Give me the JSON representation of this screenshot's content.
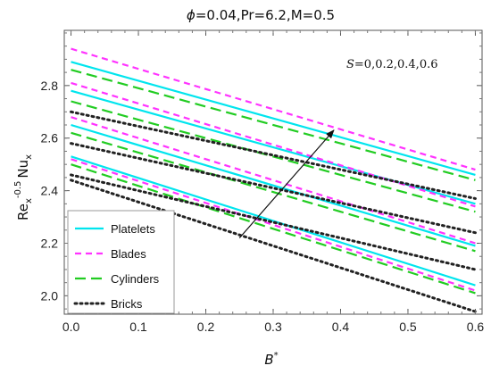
{
  "chart_data": {
    "type": "line",
    "title": "ϕ=0.04,Pr=6.2,M=0.5",
    "title_parts": {
      "phi": "ϕ",
      "rest": "=0.04,Pr=6.2,M=0.5"
    },
    "xlabel": "B*",
    "xlabel_parts": {
      "base": "B",
      "sup": "*"
    },
    "ylabel": "Re_x^-0.5 Nu_x",
    "ylabel_parts": {
      "re": "Re",
      "re_sub": "x",
      "re_sup": "-0.5",
      "nu": "Nu",
      "nu_sub": "x"
    },
    "xlim": [
      -0.01,
      0.61
    ],
    "ylim": [
      1.93,
      3.01
    ],
    "x_ticks": [
      0.0,
      0.1,
      0.2,
      0.3,
      0.4,
      0.5,
      0.6
    ],
    "x_tick_labels": [
      "0.0",
      "0.1",
      "0.2",
      "0.3",
      "0.4",
      "0.5",
      "0.6"
    ],
    "y_ticks": [
      2.0,
      2.2,
      2.4,
      2.6,
      2.8
    ],
    "y_tick_labels": [
      "2.0",
      "2.2",
      "2.4",
      "2.6",
      "2.8"
    ],
    "grid": false,
    "legend_position": "bottom-left",
    "annotation": "S=0,0.2,0.4,0.6",
    "annotation_parts": {
      "var": "S",
      "rest": "=0,0.2,0.4,0.6"
    },
    "arrow": {
      "from": [
        0.25,
        2.22
      ],
      "to": [
        0.39,
        2.63
      ]
    },
    "x": [
      0.0,
      0.6
    ],
    "series": [
      {
        "name": "Platelets",
        "color": "#00E5EE",
        "dash": "solid",
        "lines": [
          [
            2.89,
            2.46
          ],
          [
            2.78,
            2.35
          ],
          [
            2.65,
            2.19
          ],
          [
            2.53,
            2.04
          ]
        ]
      },
      {
        "name": "Blades",
        "color": "#FF33FF",
        "dash": "short",
        "lines": [
          [
            2.94,
            2.48
          ],
          [
            2.81,
            2.34
          ],
          [
            2.68,
            2.2
          ],
          [
            2.52,
            2.02
          ]
        ]
      },
      {
        "name": "Cylinders",
        "color": "#22CC22",
        "dash": "long",
        "lines": [
          [
            2.86,
            2.44
          ],
          [
            2.74,
            2.32
          ],
          [
            2.62,
            2.17
          ],
          [
            2.5,
            2.01
          ]
        ]
      },
      {
        "name": "Bricks",
        "color": "#222222",
        "dash": "dotted",
        "lines": [
          [
            2.7,
            2.37
          ],
          [
            2.58,
            2.24
          ],
          [
            2.46,
            2.1
          ],
          [
            2.44,
            1.94
          ]
        ]
      }
    ]
  }
}
